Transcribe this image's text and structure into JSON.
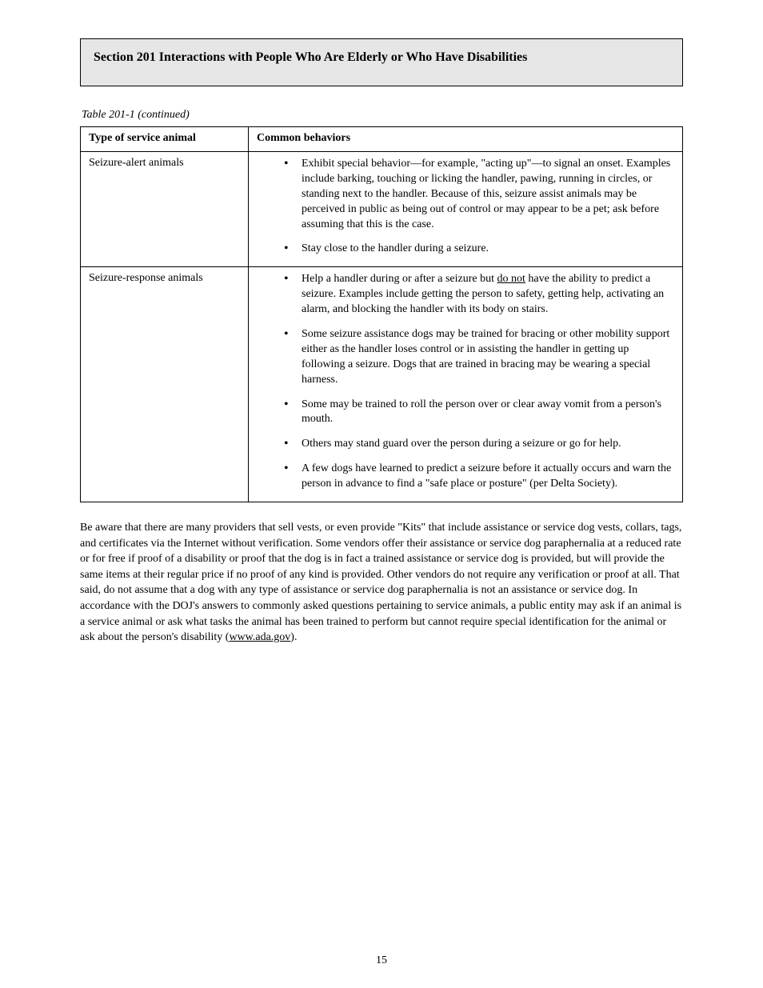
{
  "banner": {
    "title": "Section 201 Interactions with People Who Are Elderly or Who Have Disabilities"
  },
  "table": {
    "caption": "Table 201-1 (continued)",
    "headers": [
      "Type of service animal",
      "Common behaviors"
    ],
    "rows": [
      {
        "label": "Seizure-alert animals",
        "bullets": [
          "Exhibit special behavior—for example, \"acting up\"—to signal an onset. Examples include barking, touching or licking the handler, pawing, running in circles, or standing next to the handler. Because of this, seizure assist animals may be perceived in public as being out of control or may appear to be a pet; ask before assuming that this is the case.",
          "Stay close to the handler during a seizure."
        ]
      },
      {
        "label": "Seizure-response animals",
        "bullets": [
          {
            "pre": "Help a handler during or after a seizure but ",
            "underlined": "do not",
            "post": " have the ability to predict a seizure. Examples include getting the person to safety, getting help, activating an alarm, and blocking the handler with its body on stairs."
          },
          "Some seizure assistance dogs may be trained for bracing or other mobility support either as the handler loses control or in assisting the handler in getting up following a seizure. Dogs that are trained in bracing may be wearing a special harness.",
          "Some may be trained to roll the person over or clear away vomit from a person's mouth.",
          "Others may stand guard over the person during a seizure or go for help.",
          "A few dogs have learned to predict a seizure before it actually occurs and warn the person in advance to find a \"safe place or posture\" (per Delta Society)."
        ]
      }
    ]
  },
  "note": {
    "text_pre": "Be aware that there are many providers that sell vests, or even provide \"Kits\" that include assistance or service dog vests, collars, tags, and certificates via the Internet without verification. Some vendors offer their assistance or service dog paraphernalia at a reduced rate or for free if proof of a disability or proof that the dog is in fact a trained assistance or service dog is provided, but will provide the same items at their regular price if no proof of any kind is provided. Other vendors do not require any verification or proof at all. That said, do not assume that a dog with any type of assistance or service dog paraphernalia is not an assistance or service dog. In accordance with the DOJ's answers to commonly asked questions pertaining to service animals, a public entity may ask if an animal is a service animal or ask what tasks the animal has been trained to perform but cannot require special identification for the animal or ask about the person's disability (",
    "link_text": "www.ada.gov",
    "text_post": ")."
  },
  "page_number": "15"
}
